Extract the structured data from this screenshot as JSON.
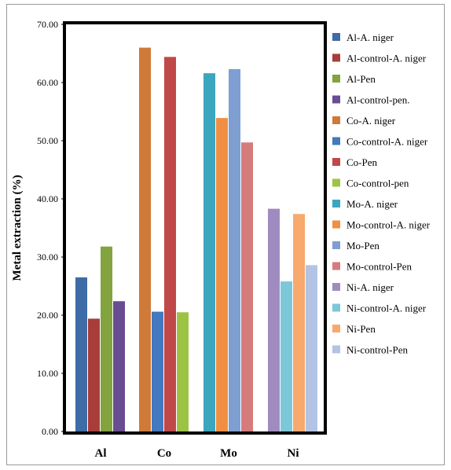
{
  "chart_data": {
    "type": "bar",
    "title": "",
    "xlabel": "",
    "ylabel": "Metal extraction (%)",
    "ylim": [
      0,
      70
    ],
    "yticks": [
      "0.00",
      "10.00",
      "20.00",
      "30.00",
      "40.00",
      "50.00",
      "60.00",
      "70.00"
    ],
    "grid": false,
    "legend_position": "right",
    "categories": [
      "Al",
      "Co",
      "Mo",
      "Ni"
    ],
    "series": [
      {
        "name": "Al-A. niger",
        "color": "#3D6CA6",
        "category": "Al",
        "value": 26.5
      },
      {
        "name": "Al-control-A. niger",
        "color": "#A83D3B",
        "category": "Al",
        "value": 19.4
      },
      {
        "name": "Al-Pen",
        "color": "#82A33D",
        "category": "Al",
        "value": 31.8
      },
      {
        "name": "Al-control-pen.",
        "color": "#6A4C93",
        "category": "Al",
        "value": 22.4
      },
      {
        "name": "Co-A. niger",
        "color": "#CF7A38",
        "category": "Co",
        "value": 66.0
      },
      {
        "name": "Co-control-A. niger",
        "color": "#4478BF",
        "category": "Co",
        "value": 20.6
      },
      {
        "name": "Co-Pen",
        "color": "#C04848",
        "category": "Co",
        "value": 64.4
      },
      {
        "name": "Co-control-pen",
        "color": "#9DC345",
        "category": "Co",
        "value": 20.5
      },
      {
        "name": "Mo-A. niger",
        "color": "#3BA6BE",
        "category": "Mo",
        "value": 61.6
      },
      {
        "name": "Mo-control-A. niger",
        "color": "#F08F43",
        "category": "Mo",
        "value": 53.9
      },
      {
        "name": "Mo-Pen",
        "color": "#7F9ED1",
        "category": "Mo",
        "value": 62.3
      },
      {
        "name": "Mo-control-Pen",
        "color": "#D67B7B",
        "category": "Mo",
        "value": 49.7
      },
      {
        "name": "Ni-A. niger",
        "color": "#A08BC0",
        "category": "Ni",
        "value": 38.3
      },
      {
        "name": "Ni-control-A. niger",
        "color": "#7CC7D9",
        "category": "Ni",
        "value": 25.8
      },
      {
        "name": "Ni-Pen",
        "color": "#F8A96E",
        "category": "Ni",
        "value": 37.4
      },
      {
        "name": "Ni-control-Pen",
        "color": "#B3C3E6",
        "category": "Ni",
        "value": 28.6
      }
    ]
  }
}
